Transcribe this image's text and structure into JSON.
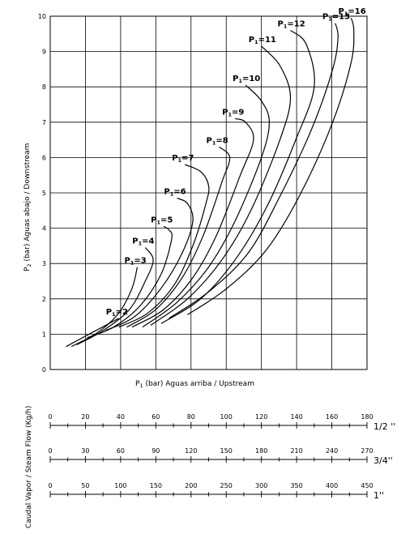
{
  "chart_data": {
    "type": "line",
    "xlabel_p": "P",
    "xlabel_sub": "1",
    "xlabel_rest": " (bar)   Aguas arriba / Upstream",
    "ylabel_p": "P",
    "ylabel_sub": "2",
    "ylabel_rest": " (bar)   Aguas abajo / Downstream",
    "flow_label": "Caudal Vapor / Steam Flow (Kg/h)",
    "ylim": [
      0,
      10
    ],
    "yticks": [
      "0",
      "1",
      "2",
      "3",
      "4",
      "5",
      "6",
      "7",
      "8",
      "9",
      "10"
    ],
    "grid": true,
    "series": [
      {
        "name": "2",
        "label": "P1=2",
        "points": [
          [
            0.6,
            0.65
          ],
          [
            1.6,
            1.05
          ],
          [
            2.6,
            1.45
          ]
        ]
      },
      {
        "name": "3",
        "label": "P1=3",
        "points": [
          [
            0.8,
            0.65
          ],
          [
            1.8,
            1.05
          ],
          [
            2.6,
            1.6
          ],
          [
            3.1,
            2.3
          ],
          [
            3.3,
            2.9
          ]
        ]
      },
      {
        "name": "4",
        "label": "P1=4",
        "points": [
          [
            1.0,
            0.7
          ],
          [
            2.0,
            1.1
          ],
          [
            3.0,
            1.7
          ],
          [
            3.6,
            2.5
          ],
          [
            3.9,
            3.1
          ],
          [
            3.6,
            3.45
          ]
        ]
      },
      {
        "name": "5",
        "label": "P1=5",
        "points": [
          [
            1.4,
            0.9
          ],
          [
            2.4,
            1.2
          ],
          [
            3.4,
            1.8
          ],
          [
            4.2,
            2.7
          ],
          [
            4.6,
            3.7
          ],
          [
            4.5,
            3.95
          ],
          [
            4.3,
            4.05
          ]
        ]
      },
      {
        "name": "6",
        "label": "P1=6",
        "points": [
          [
            2.1,
            1.1
          ],
          [
            3.2,
            1.5
          ],
          [
            4.2,
            2.3
          ],
          [
            5.0,
            3.3
          ],
          [
            5.4,
            4.2
          ],
          [
            5.2,
            4.7
          ],
          [
            4.8,
            4.85
          ]
        ]
      },
      {
        "name": "7",
        "label": "P1=7",
        "points": [
          [
            2.6,
            1.2
          ],
          [
            3.7,
            1.6
          ],
          [
            4.7,
            2.4
          ],
          [
            5.4,
            3.5
          ],
          [
            5.9,
            4.7
          ],
          [
            6.0,
            5.2
          ],
          [
            5.7,
            5.6
          ],
          [
            5.1,
            5.8
          ]
        ]
      },
      {
        "name": "8",
        "label": "P1=8",
        "points": [
          [
            2.9,
            1.2
          ],
          [
            4.0,
            1.7
          ],
          [
            5.0,
            2.6
          ],
          [
            5.8,
            3.8
          ],
          [
            6.5,
            5.3
          ],
          [
            6.8,
            6.0
          ],
          [
            6.4,
            6.3
          ]
        ]
      },
      {
        "name": "9",
        "label": "P1=9",
        "points": [
          [
            3.1,
            1.2
          ],
          [
            4.3,
            1.7
          ],
          [
            5.4,
            2.6
          ],
          [
            6.3,
            3.8
          ],
          [
            7.2,
            5.5
          ],
          [
            7.7,
            6.5
          ],
          [
            7.4,
            7.0
          ],
          [
            7.0,
            7.1
          ]
        ]
      },
      {
        "name": "10",
        "label": "P1=10",
        "points": [
          [
            3.5,
            1.2
          ],
          [
            4.8,
            1.9
          ],
          [
            6.0,
            2.9
          ],
          [
            7.0,
            4.2
          ],
          [
            8.0,
            6.0
          ],
          [
            8.3,
            7.0
          ],
          [
            8.0,
            7.6
          ],
          [
            7.4,
            8.05
          ]
        ]
      },
      {
        "name": "11",
        "label": "P1=11",
        "points": [
          [
            3.8,
            1.25
          ],
          [
            5.2,
            2.0
          ],
          [
            6.5,
            3.1
          ],
          [
            7.6,
            4.5
          ],
          [
            8.7,
            6.5
          ],
          [
            9.1,
            7.7
          ],
          [
            8.7,
            8.6
          ],
          [
            8.0,
            9.15
          ]
        ]
      },
      {
        "name": "12",
        "label": "P1=12",
        "points": [
          [
            4.2,
            1.3
          ],
          [
            5.7,
            2.0
          ],
          [
            7.0,
            3.1
          ],
          [
            8.2,
            4.6
          ],
          [
            9.3,
            6.5
          ],
          [
            10.0,
            8.0
          ],
          [
            9.7,
            9.2
          ],
          [
            9.1,
            9.6
          ]
        ]
      },
      {
        "name": "13",
        "label": "P1=13",
        "points": [
          [
            4.5,
            1.45
          ],
          [
            6.0,
            2.2
          ],
          [
            7.5,
            3.3
          ],
          [
            8.7,
            4.9
          ],
          [
            9.9,
            6.8
          ],
          [
            10.7,
            8.5
          ],
          [
            10.9,
            9.4
          ],
          [
            10.8,
            9.8
          ]
        ]
      },
      {
        "name": "16",
        "label": "P1=16",
        "points": [
          [
            5.2,
            1.55
          ],
          [
            6.7,
            2.3
          ],
          [
            8.2,
            3.4
          ],
          [
            9.5,
            5.0
          ],
          [
            10.7,
            7.0
          ],
          [
            11.4,
            8.7
          ],
          [
            11.5,
            9.6
          ],
          [
            11.4,
            9.95
          ]
        ]
      }
    ],
    "flow_scales": [
      {
        "size": "1/2 ''",
        "ticks": [
          "0",
          "20",
          "40",
          "60",
          "80",
          "100",
          "120",
          "140",
          "160",
          "180"
        ]
      },
      {
        "size": "3/4''",
        "ticks": [
          "0",
          "30",
          "60",
          "90",
          "120",
          "150",
          "180",
          "210",
          "240",
          "270"
        ]
      },
      {
        "size": "1''",
        "ticks": [
          "0",
          "50",
          "100",
          "150",
          "200",
          "250",
          "300",
          "350",
          "400",
          "450"
        ]
      }
    ]
  }
}
